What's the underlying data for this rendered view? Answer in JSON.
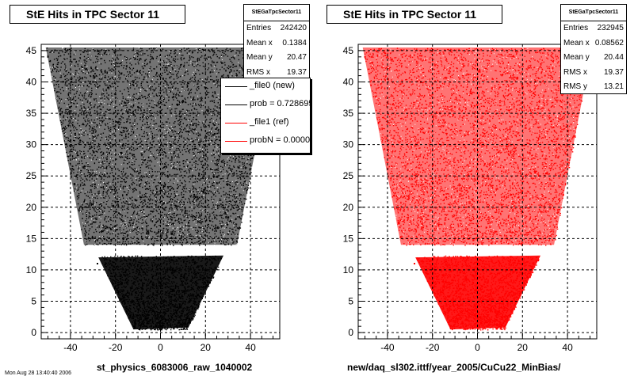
{
  "chart_data": [
    {
      "type": "scatter",
      "title": "StE Hits in TPC Sector 11",
      "xlabel": "st_physics_6083006_raw_1040002",
      "ylabel": "",
      "xlim": [
        -53,
        53
      ],
      "ylim": [
        -1,
        46
      ],
      "xticks": [
        -40,
        -20,
        0,
        20,
        40
      ],
      "yticks": [
        0,
        5,
        10,
        15,
        20,
        25,
        30,
        35,
        40,
        45
      ],
      "grid": true,
      "color": "#000000",
      "stats": {
        "name": "StEGaTpcSector11",
        "rows": [
          {
            "label": "Entries",
            "value": "242420"
          },
          {
            "label": "Mean x",
            "value": "0.1384"
          },
          {
            "label": "Mean y",
            "value": "20.47"
          },
          {
            "label": "RMS x",
            "value": "19.37"
          }
        ]
      },
      "legend": {
        "position": "top-right",
        "entries": [
          {
            "label": "_file0 (new)",
            "color": "#000000"
          },
          {
            "label": "prob = 0.728695",
            "color": "#000000"
          },
          {
            "label": "_file1 (ref)",
            "color": "#ff0000"
          },
          {
            "label": "probN = 0.000000",
            "color": "#ff0000"
          }
        ]
      },
      "series": [
        {
          "marker": "dense-dots",
          "region": "two-trapezoid pad-row band; outer rows x≈±51 at y=45 narrowing to x≈±34 at y=14; gap y≈12.8–13.5; inner rows x≈±28 at y=12 narrowing to x≈±12 at y=0",
          "x": [
            -50,
            -40,
            -30,
            -20,
            -10,
            0,
            10,
            20,
            30,
            40,
            50,
            -35,
            -25,
            -15,
            -5,
            5,
            15,
            25,
            35,
            -28,
            -18,
            -8,
            2,
            12,
            22,
            -12,
            0,
            12
          ],
          "y": [
            44,
            44,
            40,
            38,
            36,
            35,
            37,
            39,
            41,
            43,
            44,
            28,
            25,
            22,
            20,
            18,
            22,
            26,
            29,
            11,
            9,
            7,
            5,
            4,
            8,
            1,
            1,
            1
          ]
        }
      ]
    },
    {
      "type": "scatter",
      "title": "StE Hits in TPC Sector 11",
      "xlabel": "new/daq_sl302.ittf/year_2005/CuCu22_MinBias/",
      "ylabel": "",
      "xlim": [
        -53,
        53
      ],
      "ylim": [
        -1,
        46
      ],
      "xticks": [
        -40,
        -20,
        0,
        20,
        40
      ],
      "yticks": [
        0,
        5,
        10,
        15,
        20,
        25,
        30,
        35,
        40,
        45
      ],
      "grid": true,
      "color": "#ff0000",
      "stats": {
        "name": "StEGaTpcSector11",
        "rows": [
          {
            "label": "Entries",
            "value": "232945"
          },
          {
            "label": "Mean x",
            "value": "0.08562"
          },
          {
            "label": "Mean y",
            "value": "20.44"
          },
          {
            "label": "RMS x",
            "value": "19.37"
          },
          {
            "label": "RMS y",
            "value": "13.21"
          }
        ]
      },
      "series": [
        {
          "marker": "dense-dots",
          "region": "same two-trapezoid pad-row band as left panel",
          "x": [
            -50,
            -40,
            -30,
            -20,
            -10,
            0,
            10,
            20,
            30,
            40,
            50,
            -35,
            -25,
            -15,
            -5,
            5,
            15,
            25,
            35,
            -28,
            -18,
            -8,
            2,
            12,
            22,
            -12,
            0,
            12
          ],
          "y": [
            44,
            44,
            40,
            38,
            36,
            35,
            37,
            39,
            41,
            43,
            44,
            28,
            25,
            22,
            20,
            18,
            22,
            26,
            29,
            11,
            9,
            7,
            5,
            4,
            8,
            1,
            1,
            1
          ]
        }
      ]
    }
  ],
  "footer": "Mon Aug 28 13:40:40 2006"
}
